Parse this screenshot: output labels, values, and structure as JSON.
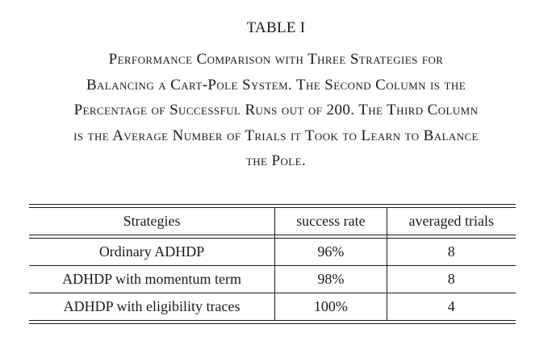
{
  "table_label": "TABLE I",
  "caption_lines": [
    "Performance Comparison with Three Strategies for",
    "Balancing a Cart-Pole System. The Second Column is the",
    "Percentage of Successful Runs out of 200. The Third Column",
    "is the Average Number of Trials it Took to Learn to Balance",
    "the Pole."
  ],
  "table": {
    "headers": [
      "Strategies",
      "success rate",
      "averaged trials"
    ],
    "rows": [
      [
        "Ordinary ADHDP",
        "96%",
        "8"
      ],
      [
        "ADHDP with momentum term",
        "98%",
        "8"
      ],
      [
        "ADHDP with eligibility traces",
        "100%",
        "4"
      ]
    ]
  }
}
